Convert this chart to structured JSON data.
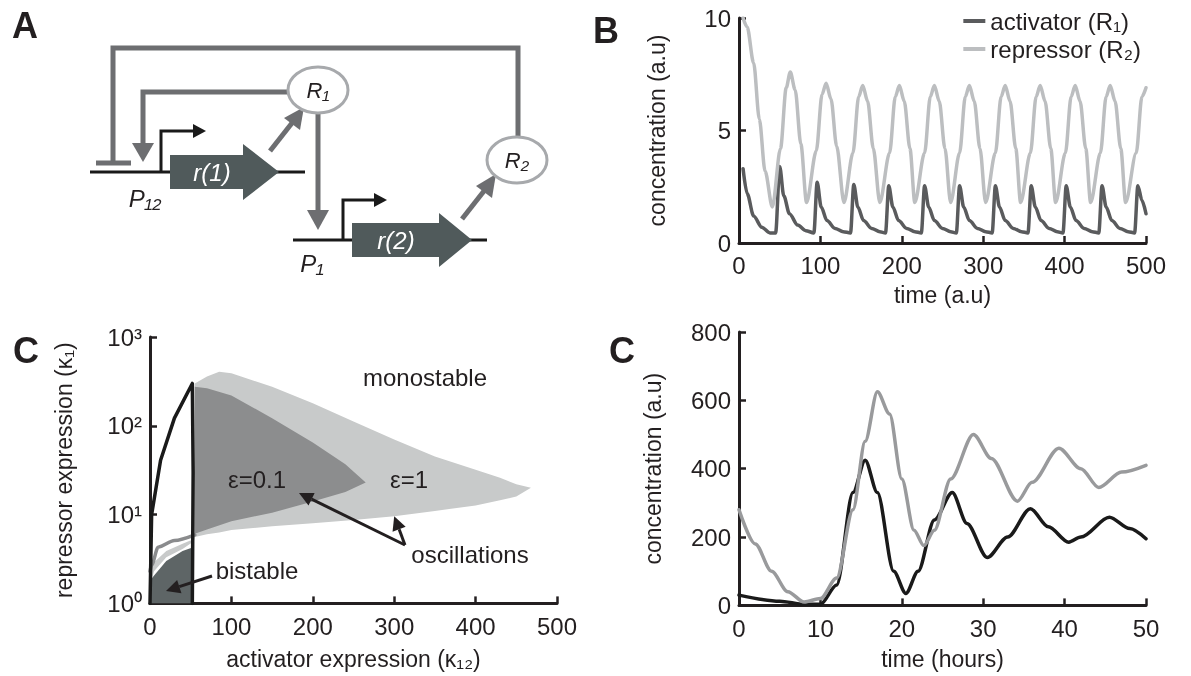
{
  "chart_data": [
    {
      "type": "other",
      "title": "A",
      "annotations": [
        "R₁",
        "R₂",
        "r(1)",
        "r(2)",
        "P₁₂",
        "P₁"
      ]
    },
    {
      "type": "line",
      "title": "B",
      "xlabel": "time (a.u)",
      "ylabel": "concentration (a.u)",
      "xlim": [
        0,
        500
      ],
      "xticks": [
        0,
        100,
        200,
        300,
        400,
        500
      ],
      "ylim": [
        0,
        10
      ],
      "yticks": [
        0,
        5,
        10
      ],
      "legend": "top right",
      "marker": "none",
      "series": [
        {
          "name": "activator (R₁)",
          "color": "#5a5b5d",
          "x": [
            5,
            10,
            18,
            28,
            38,
            45,
            50,
            55,
            62,
            72,
            82,
            92,
            96,
            101,
            108,
            118,
            128,
            137,
            141,
            146,
            153,
            163,
            173,
            180,
            184,
            189,
            196,
            206,
            216,
            224,
            228,
            233,
            240,
            250,
            260,
            267,
            271,
            276,
            283,
            293,
            303,
            311,
            315,
            320,
            327,
            337,
            347,
            355,
            359,
            364,
            371,
            381,
            391,
            398,
            402,
            407,
            414,
            424,
            434,
            442,
            446,
            451,
            458,
            468,
            478,
            486,
            490,
            495,
            500
          ],
          "values": [
            3.3,
            2.2,
            1.2,
            0.7,
            0.45,
            0.45,
            3.4,
            2.1,
            1.3,
            0.8,
            0.55,
            0.45,
            2.7,
            1.6,
            1.0,
            0.65,
            0.5,
            0.45,
            2.6,
            1.6,
            1.0,
            0.65,
            0.5,
            0.45,
            2.55,
            1.6,
            1.0,
            0.65,
            0.5,
            0.45,
            2.55,
            1.6,
            1.0,
            0.65,
            0.5,
            0.45,
            2.55,
            1.6,
            1.0,
            0.65,
            0.5,
            0.45,
            2.55,
            1.6,
            1.0,
            0.65,
            0.5,
            0.45,
            2.55,
            1.6,
            1.0,
            0.65,
            0.5,
            0.45,
            2.55,
            1.6,
            1.0,
            0.65,
            0.5,
            0.45,
            2.55,
            1.6,
            1.0,
            0.65,
            0.5,
            0.45,
            2.55,
            1.9,
            1.3
          ]
        },
        {
          "name": "repressor (R₂)",
          "color": "#bcbec0",
          "x": [
            5,
            10,
            18,
            25,
            32,
            41,
            51,
            58,
            63,
            69,
            76,
            83,
            95,
            102,
            107,
            113,
            120,
            129,
            140,
            147,
            152,
            158,
            165,
            173,
            185,
            192,
            197,
            203,
            210,
            216,
            228,
            235,
            240,
            246,
            253,
            260,
            271,
            278,
            283,
            289,
            296,
            303,
            315,
            322,
            327,
            333,
            340,
            346,
            358,
            365,
            370,
            376,
            383,
            389,
            401,
            408,
            413,
            419,
            426,
            432,
            444,
            451,
            456,
            462,
            469,
            475,
            488,
            495,
            500
          ],
          "values": [
            10,
            9.6,
            8,
            5.5,
            3.2,
            1.6,
            4.2,
            6.9,
            7.6,
            6.8,
            4.4,
            1.8,
            4.1,
            6.6,
            7.1,
            6.4,
            4.3,
            1.8,
            4.0,
            6.5,
            7.0,
            6.3,
            4.2,
            1.8,
            4.0,
            6.5,
            7.0,
            6.3,
            4.2,
            1.8,
            4.0,
            6.5,
            7.0,
            6.3,
            4.2,
            1.8,
            4.0,
            6.5,
            7.0,
            6.3,
            4.2,
            1.8,
            4.0,
            6.5,
            7.0,
            6.3,
            4.2,
            1.8,
            4.0,
            6.5,
            7.0,
            6.3,
            4.2,
            1.8,
            4.0,
            6.5,
            7.0,
            6.3,
            4.2,
            1.8,
            4.0,
            6.5,
            7.0,
            6.3,
            4.2,
            1.8,
            4.0,
            6.5,
            6.9
          ]
        }
      ]
    },
    {
      "type": "area",
      "title": "C",
      "xlabel": "activator expression (κ₁₂)",
      "ylabel": "repressor expression (κ₁)",
      "xlim": [
        0,
        500
      ],
      "xticks": [
        0,
        100,
        200,
        300,
        400,
        500
      ],
      "ylim": [
        1,
        1000
      ],
      "yticks": [
        {
          "value": 1,
          "label": "10⁰"
        },
        {
          "value": 10,
          "label": "10¹"
        },
        {
          "value": 100,
          "label": "10²"
        },
        {
          "value": 1000,
          "label": "10³"
        }
      ],
      "log": "y",
      "marker": "none",
      "annotations": [
        "monostable",
        "ε=0.1",
        "ε=1",
        {
          "text": "oscillations",
          "x": 300,
          "y": 9.6
        },
        "bistable"
      ],
      "series": [
        {
          "type": "area",
          "color": "#c8caca",
          "x": [
            0,
            5,
            20,
            40,
            54,
            55,
            70,
            85,
            100,
            150,
            200,
            250,
            300,
            350,
            400,
            430,
            450,
            468,
            450,
            430,
            400,
            350,
            300,
            250,
            200,
            150,
            100,
            85,
            70,
            55,
            54,
            40,
            20,
            5,
            0
          ],
          "values": [
            2.7,
            2.9,
            3.9,
            4.7,
            5.3,
            300,
            360,
            405,
            390,
            275,
            180,
            112,
            70,
            45,
            32,
            26,
            22,
            20,
            16,
            14.5,
            12.7,
            11,
            9.6,
            8.7,
            8,
            7.4,
            6.7,
            6.3,
            6,
            5.6,
            5,
            4.1,
            3.3,
            2.3,
            1.6
          ]
        },
        {
          "type": "area",
          "color": "#8c8d8e",
          "x": [
            55,
            70,
            100,
            150,
            200,
            240,
            265,
            240,
            200,
            150,
            100,
            70,
            55
          ],
          "values": [
            275,
            265,
            220,
            122,
            65,
            37,
            23,
            18,
            14,
            10.5,
            8.4,
            6.8,
            6.1
          ]
        },
        {
          "type": "area",
          "color": "#5e6566",
          "x": [
            0,
            5,
            20,
            40,
            53,
            53,
            0
          ],
          "values": [
            1.8,
            2.06,
            3.0,
            3.9,
            4.3,
            1,
            1
          ]
        },
        {
          "type": "line",
          "color": "#8a8b8d",
          "x": [
            0,
            2,
            10,
            30,
            55
          ],
          "values": [
            2.3,
            2.7,
            4.3,
            5.1,
            5.9
          ]
        },
        {
          "type": "line",
          "color": "#1a1a1a",
          "x": [
            0,
            2,
            13,
            30,
            52,
            53,
            52
          ],
          "values": [
            1,
            10,
            41,
            122,
            300,
            30,
            1
          ]
        }
      ]
    },
    {
      "type": "line",
      "title": "C",
      "xlabel": "time (hours)",
      "ylabel": "concentration (a.u)",
      "xlim": [
        0,
        50
      ],
      "xticks": [
        0,
        10,
        20,
        30,
        40,
        50
      ],
      "ylim": [
        0,
        800
      ],
      "yticks": [
        0,
        200,
        400,
        600,
        800
      ],
      "marker": "none",
      "series": [
        {
          "color": "#1a1a1a",
          "x": [
            0,
            5,
            8,
            10,
            12,
            14,
            15.5,
            17,
            19,
            20.5,
            22,
            24,
            26.2,
            28,
            30.5,
            33,
            35.8,
            38,
            40.5,
            42,
            45.5,
            48,
            50
          ],
          "values": [
            30,
            12,
            3,
            3,
            60,
            330,
            425,
            330,
            100,
            35,
            100,
            250,
            330,
            240,
            140,
            200,
            283,
            230,
            185,
            200,
            258,
            225,
            195
          ]
        },
        {
          "color": "#999a9c",
          "x": [
            0,
            2,
            4,
            6,
            8,
            10,
            12,
            14,
            15.5,
            17,
            18.5,
            20,
            21.5,
            22.7,
            24,
            26,
            28.8,
            31,
            34.2,
            36,
            39.3,
            42,
            44.2,
            47,
            50
          ],
          "values": [
            280,
            180,
            100,
            40,
            10,
            20,
            80,
            280,
            480,
            625,
            560,
            370,
            220,
            175,
            220,
            370,
            500,
            430,
            305,
            360,
            460,
            400,
            345,
            390,
            410
          ]
        }
      ]
    }
  ]
}
